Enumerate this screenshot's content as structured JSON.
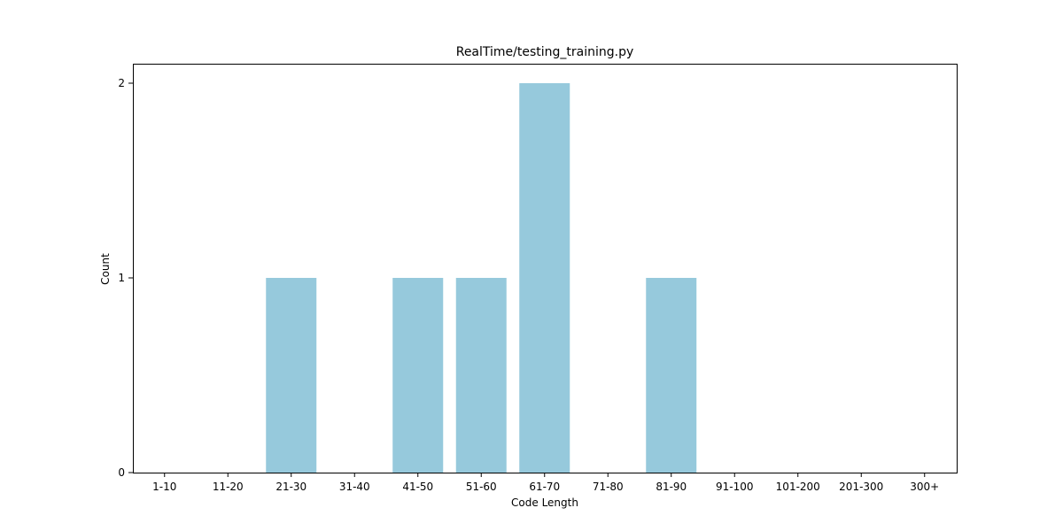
{
  "chart_data": {
    "type": "bar",
    "title": "RealTime/testing_training.py",
    "xlabel": "Code Length",
    "ylabel": "Count",
    "categories": [
      "1-10",
      "11-20",
      "21-30",
      "31-40",
      "41-50",
      "51-60",
      "61-70",
      "71-80",
      "81-90",
      "91-100",
      "101-200",
      "201-300",
      "300+"
    ],
    "values": [
      0,
      0,
      1,
      0,
      1,
      1,
      2,
      0,
      1,
      0,
      0,
      0,
      0
    ],
    "ylim": [
      0,
      2.1
    ],
    "yticks": [
      0,
      1,
      2
    ],
    "bar_color": "#96c9dc",
    "grid": false,
    "legend": "none"
  }
}
